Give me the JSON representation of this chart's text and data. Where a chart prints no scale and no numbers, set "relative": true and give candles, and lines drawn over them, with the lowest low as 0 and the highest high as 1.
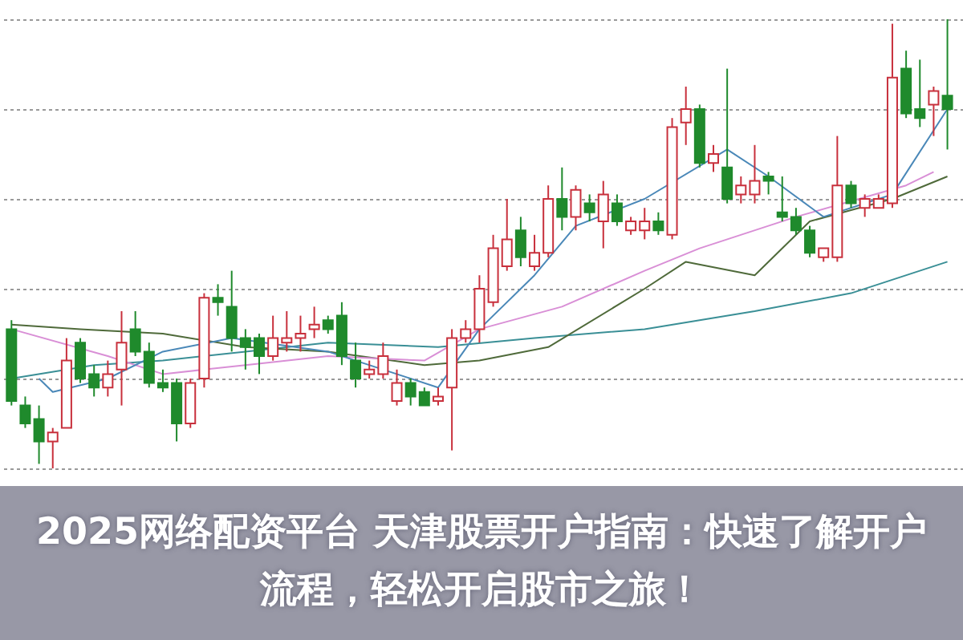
{
  "chart_data": {
    "type": "candlestick",
    "relative": true,
    "grid": "y",
    "title": "2025网络配资平台 天津股票开户指南：快速了解开户流程，轻松开启股市之旅！",
    "categories": [
      null,
      null,
      null,
      null,
      null,
      null,
      null,
      null,
      null,
      null,
      null,
      null,
      null,
      null,
      null,
      null,
      null,
      null,
      null,
      null,
      null,
      null,
      null,
      null,
      null,
      null,
      null,
      null,
      null,
      null,
      null,
      null,
      null,
      null,
      null,
      null,
      null,
      null,
      null,
      null,
      null,
      null,
      null,
      null,
      null,
      null,
      null,
      null,
      null,
      null,
      null,
      null,
      null,
      null,
      null,
      null,
      null,
      null,
      null,
      null,
      null,
      null,
      null,
      null,
      null,
      null,
      null,
      null,
      null
    ],
    "ohlc": [
      [
        0.31,
        0.33,
        0.14,
        0.15
      ],
      [
        0.14,
        0.16,
        0.09,
        0.1
      ],
      [
        0.11,
        0.14,
        0.01,
        0.06
      ],
      [
        0.06,
        0.09,
        0,
        0.08
      ],
      [
        0.09,
        0.29,
        0.09,
        0.24
      ],
      [
        0.28,
        0.29,
        0.19,
        0.2
      ],
      [
        0.21,
        0.23,
        0.16,
        0.18
      ],
      [
        0.18,
        0.24,
        0.16,
        0.21
      ],
      [
        0.22,
        0.35,
        0.14,
        0.28
      ],
      [
        0.31,
        0.35,
        0.25,
        0.26
      ],
      [
        0.26,
        0.28,
        0.18,
        0.19
      ],
      [
        0.19,
        0.22,
        0.17,
        0.18
      ],
      [
        0.19,
        0.2,
        0.06,
        0.1
      ],
      [
        0.1,
        0.2,
        0.09,
        0.19
      ],
      [
        0.2,
        0.39,
        0.18,
        0.38
      ],
      [
        0.38,
        0.41,
        0.34,
        0.37
      ],
      [
        0.36,
        0.44,
        0.26,
        0.29
      ],
      [
        0.29,
        0.31,
        0.22,
        0.27
      ],
      [
        0.29,
        0.3,
        0.21,
        0.25
      ],
      [
        0.25,
        0.34,
        0.24,
        0.29
      ],
      [
        0.28,
        0.35,
        0.26,
        0.29
      ],
      [
        0.29,
        0.34,
        0.26,
        0.3
      ],
      [
        0.31,
        0.36,
        0.29,
        0.32
      ],
      [
        0.33,
        0.34,
        0.3,
        0.31
      ],
      [
        0.34,
        0.37,
        0.23,
        0.25
      ],
      [
        0.24,
        0.28,
        0.18,
        0.2
      ],
      [
        0.21,
        0.24,
        0.2,
        0.22
      ],
      [
        0.21,
        0.28,
        0.2,
        0.25
      ],
      [
        0.15,
        0.22,
        0.14,
        0.19
      ],
      [
        0.19,
        0.2,
        0.14,
        0.16
      ],
      [
        0.17,
        0.18,
        0.14,
        0.14
      ],
      [
        0.15,
        0.18,
        0.14,
        0.16
      ],
      [
        0.18,
        0.31,
        0.04,
        0.29
      ],
      [
        0.29,
        0.33,
        0.28,
        0.31
      ],
      [
        0.31,
        0.43,
        0.28,
        0.4
      ],
      [
        0.37,
        0.52,
        0.36,
        0.49
      ],
      [
        0.45,
        0.6,
        0.44,
        0.51
      ],
      [
        0.53,
        0.56,
        0.45,
        0.47
      ],
      [
        0.45,
        0.52,
        0.44,
        0.48
      ],
      [
        0.48,
        0.63,
        0.47,
        0.6
      ],
      [
        0.6,
        0.67,
        0.53,
        0.56
      ],
      [
        0.56,
        0.63,
        0.53,
        0.62
      ],
      [
        0.59,
        0.61,
        0.55,
        0.57
      ],
      [
        0.55,
        0.64,
        0.49,
        0.61
      ],
      [
        0.59,
        0.61,
        0.54,
        0.55
      ],
      [
        0.53,
        0.56,
        0.52,
        0.55
      ],
      [
        0.53,
        0.58,
        0.51,
        0.55
      ],
      [
        0.55,
        0.57,
        0.52,
        0.53
      ],
      [
        0.52,
        0.78,
        0.51,
        0.76
      ],
      [
        0.77,
        0.85,
        0.72,
        0.8
      ],
      [
        0.8,
        0.81,
        0.67,
        0.68
      ],
      [
        0.68,
        0.72,
        0.66,
        0.7
      ],
      [
        0.67,
        0.89,
        0.59,
        0.6
      ],
      [
        0.61,
        0.65,
        0.59,
        0.63
      ],
      [
        0.61,
        0.72,
        0.59,
        0.64
      ],
      [
        0.65,
        0.66,
        0.61,
        0.64
      ],
      [
        0.57,
        0.65,
        0.55,
        0.56
      ],
      [
        0.56,
        0.58,
        0.52,
        0.53
      ],
      [
        0.53,
        0.54,
        0.47,
        0.48
      ],
      [
        0.47,
        0.49,
        0.46,
        0.49
      ],
      [
        0.47,
        0.74,
        0.46,
        0.63
      ],
      [
        0.63,
        0.64,
        0.58,
        0.59
      ],
      [
        0.58,
        0.61,
        0.56,
        0.6
      ],
      [
        0.58,
        0.61,
        0.58,
        0.6
      ],
      [
        0.59,
        0.99,
        0.58,
        0.87
      ],
      [
        0.89,
        0.93,
        0.78,
        0.79
      ],
      [
        0.8,
        0.91,
        0.76,
        0.78
      ],
      [
        0.81,
        0.85,
        0.74,
        0.84
      ],
      [
        0.83,
        1,
        0.71,
        0.8
      ]
    ],
    "colors": [
      "#1f8a2c",
      "#1f8a2c",
      "#1f8a2c",
      "#c8303c",
      "#c8303c",
      "#1f8a2c",
      "#1f8a2c",
      "#c8303c",
      "#c8303c",
      "#1f8a2c",
      "#1f8a2c",
      "#1f8a2c",
      "#1f8a2c",
      "#c8303c",
      "#c8303c",
      "#1f8a2c",
      "#1f8a2c",
      "#1f8a2c",
      "#1f8a2c",
      "#c8303c",
      "#c8303c",
      "#c8303c",
      "#c8303c",
      "#1f8a2c",
      "#1f8a2c",
      "#1f8a2c",
      "#c8303c",
      "#c8303c",
      "#c8303c",
      "#1f8a2c",
      "#1f8a2c",
      "#c8303c",
      "#c8303c",
      "#c8303c",
      "#c8303c",
      "#c8303c",
      "#c8303c",
      "#1f8a2c",
      "#c8303c",
      "#c8303c",
      "#1f8a2c",
      "#c8303c",
      "#1f8a2c",
      "#c8303c",
      "#1f8a2c",
      "#c8303c",
      "#c8303c",
      "#1f8a2c",
      "#c8303c",
      "#c8303c",
      "#1f8a2c",
      "#c8303c",
      "#1f8a2c",
      "#c8303c",
      "#c8303c",
      "#1f8a2c",
      "#1f8a2c",
      "#1f8a2c",
      "#1f8a2c",
      "#c8303c",
      "#c8303c",
      "#1f8a2c",
      "#c8303c",
      "#c8303c",
      "#c8303c",
      "#1f8a2c",
      "#1f8a2c",
      "#c8303c",
      "#1f8a2c"
    ],
    "series": [
      {
        "type": "line",
        "color": "#3a8f96",
        "values": [
          0.2,
          null,
          null,
          null,
          null,
          null,
          0.23,
          null,
          null,
          null,
          null,
          0.24,
          null,
          null,
          null,
          null,
          null,
          0.26,
          null,
          null,
          null,
          null,
          null,
          0.28,
          null,
          null,
          null,
          null,
          null,
          null,
          null,
          0.27,
          null,
          null,
          null,
          null,
          null,
          null,
          0.29,
          null,
          null,
          null,
          null,
          null,
          null,
          null,
          0.31,
          null,
          null,
          null,
          null,
          null,
          null,
          null,
          0.35,
          null,
          null,
          null,
          null,
          null,
          null,
          0.39,
          null,
          null,
          null,
          null,
          null,
          null,
          0.46
        ]
      },
      {
        "type": "line",
        "color": "#4f6a3a",
        "values": [
          0.32,
          null,
          null,
          null,
          null,
          0.31,
          null,
          null,
          null,
          null,
          null,
          0.3,
          null,
          null,
          null,
          null,
          null,
          0.27,
          null,
          null,
          null,
          null,
          null,
          0.26,
          null,
          null,
          null,
          null,
          null,
          null,
          0.23,
          null,
          null,
          null,
          0.24,
          null,
          null,
          null,
          null,
          0.27,
          null,
          null,
          null,
          null,
          null,
          null,
          0.4,
          null,
          null,
          0.46,
          null,
          null,
          null,
          null,
          0.43,
          null,
          null,
          null,
          0.55,
          null,
          null,
          null,
          null,
          null,
          0.6,
          null,
          null,
          null,
          0.65
        ]
      },
      {
        "type": "line",
        "color": "#d98fd6",
        "values": [
          0.31,
          null,
          null,
          null,
          null,
          null,
          null,
          0.25,
          null,
          null,
          null,
          0.21,
          null,
          null,
          null,
          null,
          null,
          0.23,
          null,
          null,
          null,
          null,
          null,
          0.25,
          null,
          null,
          null,
          null,
          null,
          null,
          0.24,
          null,
          null,
          null,
          0.31,
          null,
          null,
          null,
          null,
          null,
          0.36,
          null,
          null,
          null,
          null,
          null,
          0.44,
          null,
          null,
          null,
          0.49,
          null,
          null,
          null,
          null,
          null,
          null,
          0.56,
          null,
          null,
          null,
          null,
          null,
          null,
          null,
          0.63,
          null,
          0.66,
          null
        ]
      },
      {
        "type": "line",
        "color": "#4a88b8",
        "values": [
          null,
          null,
          0.2,
          0.17,
          null,
          null,
          null,
          0.2,
          null,
          null,
          null,
          0.26,
          null,
          null,
          null,
          null,
          0.29,
          null,
          null,
          null,
          null,
          null,
          null,
          0.26,
          null,
          null,
          null,
          null,
          null,
          null,
          null,
          0.18,
          null,
          null,
          0.31,
          null,
          null,
          null,
          0.43,
          null,
          null,
          0.54,
          null,
          null,
          null,
          null,
          0.6,
          null,
          null,
          null,
          null,
          null,
          0.71,
          null,
          null,
          0.65,
          null,
          null,
          null,
          0.56,
          null,
          null,
          null,
          null,
          0.61,
          null,
          null,
          null,
          0.8
        ]
      }
    ]
  }
}
